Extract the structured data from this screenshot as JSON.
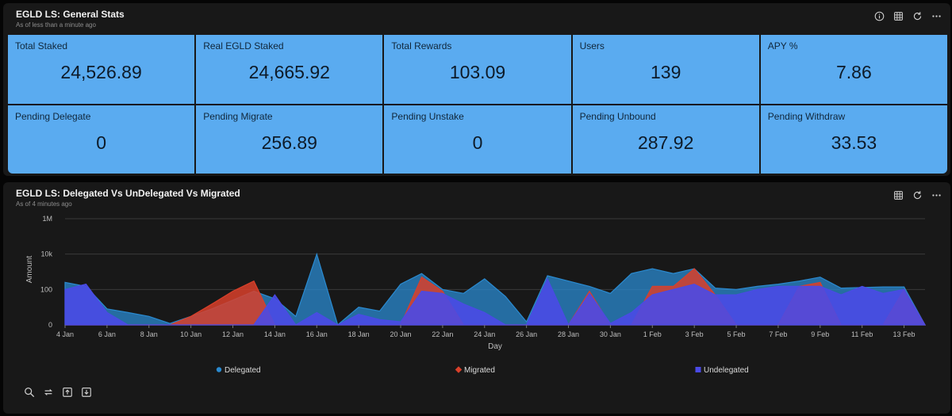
{
  "stats_panel": {
    "title": "EGLD LS: General Stats",
    "subtitle": "As of less than a minute ago",
    "icons": [
      "info-icon",
      "table-icon",
      "refresh-icon",
      "more-icon"
    ],
    "cards": [
      {
        "label": "Total Staked",
        "value": "24,526.89"
      },
      {
        "label": "Real EGLD Staked",
        "value": "24,665.92"
      },
      {
        "label": "Total Rewards",
        "value": "103.09"
      },
      {
        "label": "Users",
        "value": "139"
      },
      {
        "label": "APY %",
        "value": "7.86"
      },
      {
        "label": "Pending Delegate",
        "value": "0"
      },
      {
        "label": "Pending Migrate",
        "value": "256.89"
      },
      {
        "label": "Pending Unstake",
        "value": "0"
      },
      {
        "label": "Pending Unbound",
        "value": "287.92"
      },
      {
        "label": "Pending Withdraw",
        "value": "33.53"
      }
    ]
  },
  "chart_panel": {
    "title": "EGLD LS: Delegated Vs UnDelegated Vs Migrated",
    "subtitle": "As of 4 minutes ago",
    "icons": [
      "table-icon",
      "refresh-icon",
      "more-icon"
    ],
    "toolbar_icons": [
      "zoom-icon",
      "reset-icon",
      "export-image-icon",
      "download-icon"
    ]
  },
  "colors": {
    "card_bg": "#5aabf0",
    "delegated": "#2a8ad0",
    "migrated": "#d9402a",
    "undelegated": "#4a4ae6"
  },
  "chart_data": {
    "type": "area",
    "xlabel": "Day",
    "ylabel": "Amount",
    "yscale": "log",
    "yticks": [
      "0",
      "100",
      "10k",
      "1M"
    ],
    "xticks": [
      "4 Jan",
      "6 Jan",
      "8 Jan",
      "10 Jan",
      "12 Jan",
      "14 Jan",
      "16 Jan",
      "18 Jan",
      "20 Jan",
      "22 Jan",
      "24 Jan",
      "26 Jan",
      "28 Jan",
      "30 Jan",
      "1 Feb",
      "3 Feb",
      "5 Feb",
      "7 Feb",
      "9 Feb",
      "11 Feb",
      "13 Feb"
    ],
    "legend_position": "bottom",
    "x": [
      "4 Jan",
      "5 Jan",
      "6 Jan",
      "7 Jan",
      "8 Jan",
      "9 Jan",
      "10 Jan",
      "11 Jan",
      "12 Jan",
      "13 Jan",
      "14 Jan",
      "15 Jan",
      "16 Jan",
      "17 Jan",
      "18 Jan",
      "19 Jan",
      "20 Jan",
      "21 Jan",
      "22 Jan",
      "23 Jan",
      "24 Jan",
      "25 Jan",
      "26 Jan",
      "27 Jan",
      "28 Jan",
      "29 Jan",
      "30 Jan",
      "31 Jan",
      "1 Feb",
      "2 Feb",
      "3 Feb",
      "4 Feb",
      "5 Feb",
      "6 Feb",
      "7 Feb",
      "8 Feb",
      "9 Feb",
      "10 Feb",
      "11 Feb",
      "12 Feb",
      "13 Feb",
      "14 Feb"
    ],
    "series": [
      {
        "name": "Delegated",
        "values": [
          250,
          150,
          8,
          5,
          3,
          1.2,
          3,
          8,
          25,
          80,
          30,
          3,
          10000,
          1,
          10,
          6,
          200,
          800,
          100,
          60,
          400,
          40,
          1.5,
          600,
          300,
          150,
          60,
          800,
          1500,
          800,
          1500,
          120,
          100,
          150,
          200,
          300,
          500,
          120,
          130,
          140,
          140,
          1
        ]
      },
      {
        "name": "Migrated",
        "values": [
          0,
          0,
          0,
          0,
          0,
          0,
          3,
          15,
          80,
          300,
          0,
          0,
          0,
          0,
          0,
          0,
          0,
          500,
          80,
          0,
          0,
          0,
          0,
          0,
          0,
          80,
          0,
          0,
          150,
          150,
          1500,
          50,
          0,
          0,
          0,
          150,
          250,
          0,
          0,
          0,
          100,
          0
        ]
      },
      {
        "name": "Undelegated",
        "values": [
          100,
          200,
          5,
          0,
          0,
          0,
          0,
          0,
          0,
          0,
          50,
          0,
          5,
          0,
          4,
          2,
          1.5,
          80,
          60,
          15,
          5,
          1,
          0,
          400,
          0,
          60,
          1.2,
          5,
          50,
          100,
          200,
          50,
          50,
          100,
          150,
          150,
          150,
          50,
          150,
          60,
          100,
          0
        ]
      }
    ]
  }
}
